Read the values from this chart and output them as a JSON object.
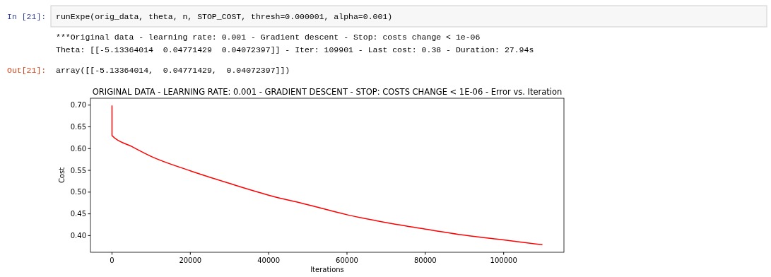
{
  "chart_data": {
    "type": "line",
    "title": "ORIGINAL DATA - LEARNING RATE: 0.001 - GRADIENT DESCENT - STOP: COSTS CHANGE < 1E-06 - Error vs. Iteration",
    "xlabel": "Iterations",
    "ylabel": "Cost",
    "annotations": [
      "In [21]:",
      "runExpe(orig_data, theta, n, STOP_COST, thresh=0.000001, alpha=0.001)",
      "***Original data - learning rate: 0.001 - Gradient descent - Stop: costs change < 1e-06",
      "Theta: [[-5.13364014  0.04771429  0.04072397]] - Iter: 109901 - Last cost: 0.38 - Duration: 27.94s",
      "Out[21]:",
      "array([[-5.13364014,  0.04771429,  0.04072397]])"
    ],
    "xlim": [
      -5495,
      115396
    ],
    "xticks": [
      0,
      20000,
      40000,
      60000,
      80000,
      100000
    ],
    "ylim": [
      0.3617,
      0.7158
    ],
    "yticks": [
      {
        "value": 0.4,
        "label": "0.40"
      },
      {
        "value": 0.45,
        "label": "0.45"
      },
      {
        "value": 0.5,
        "label": "0.50"
      },
      {
        "value": 0.55,
        "label": "0.55"
      },
      {
        "value": 0.6,
        "label": "0.60"
      },
      {
        "value": 0.65,
        "label": "0.65"
      },
      {
        "value": 0.7,
        "label": "0.70"
      }
    ],
    "grid": false,
    "series": [
      {
        "color": "#ff0000",
        "x": [
          0,
          1,
          5000,
          10000,
          20000,
          30000,
          40000,
          50000,
          60000,
          70000,
          80000,
          90000,
          100000,
          109901
        ],
        "values": [
          0.699,
          0.63,
          0.605,
          0.582,
          0.549,
          0.52,
          0.493,
          0.471,
          0.448,
          0.43,
          0.415,
          0.401,
          0.39,
          0.379
        ]
      }
    ]
  }
}
